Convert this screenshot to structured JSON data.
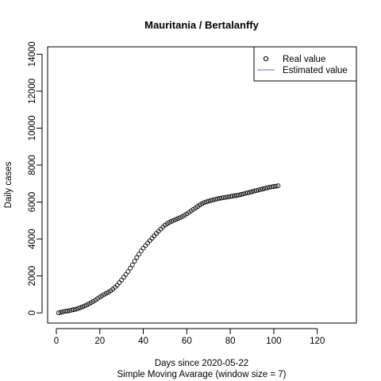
{
  "chart_data": {
    "type": "scatter",
    "title": "Mauritania / Bertalanffy",
    "xlabel": "Days since 2020-05-22",
    "subtitle": "Simple Moving Avarage (window size = 7)",
    "ylabel": "Daily cases",
    "xlim": [
      -4,
      138
    ],
    "ylim": [
      -550,
      14400
    ],
    "xticks": [
      0,
      20,
      40,
      60,
      80,
      100,
      120
    ],
    "yticks": [
      0,
      2000,
      4000,
      6000,
      8000,
      10000,
      12000,
      14000
    ],
    "legend": {
      "position": "top-right",
      "entries": [
        {
          "label": "Real value",
          "symbol": "open-circle"
        },
        {
          "label": "Estimated value",
          "symbol": "line",
          "color": "#9b59b6"
        }
      ]
    },
    "series": [
      {
        "name": "Real value",
        "marker": "open-circle",
        "points": [
          [
            1,
            5
          ],
          [
            2,
            30
          ],
          [
            3,
            60
          ],
          [
            4,
            85
          ],
          [
            5,
            100
          ],
          [
            6,
            120
          ],
          [
            7,
            150
          ],
          [
            8,
            175
          ],
          [
            9,
            200
          ],
          [
            10,
            240
          ],
          [
            11,
            280
          ],
          [
            12,
            330
          ],
          [
            13,
            380
          ],
          [
            14,
            430
          ],
          [
            15,
            490
          ],
          [
            16,
            560
          ],
          [
            17,
            620
          ],
          [
            18,
            700
          ],
          [
            19,
            780
          ],
          [
            20,
            860
          ],
          [
            21,
            930
          ],
          [
            22,
            1000
          ],
          [
            23,
            1060
          ],
          [
            24,
            1120
          ],
          [
            25,
            1200
          ],
          [
            26,
            1290
          ],
          [
            27,
            1390
          ],
          [
            28,
            1500
          ],
          [
            29,
            1640
          ],
          [
            30,
            1780
          ],
          [
            31,
            1930
          ],
          [
            32,
            2080
          ],
          [
            33,
            2240
          ],
          [
            34,
            2420
          ],
          [
            35,
            2600
          ],
          [
            36,
            2800
          ],
          [
            37,
            3000
          ],
          [
            38,
            3180
          ],
          [
            39,
            3350
          ],
          [
            40,
            3500
          ],
          [
            41,
            3640
          ],
          [
            42,
            3780
          ],
          [
            43,
            3910
          ],
          [
            44,
            4040
          ],
          [
            45,
            4170
          ],
          [
            46,
            4300
          ],
          [
            47,
            4420
          ],
          [
            48,
            4540
          ],
          [
            49,
            4650
          ],
          [
            50,
            4750
          ],
          [
            51,
            4830
          ],
          [
            52,
            4900
          ],
          [
            53,
            4960
          ],
          [
            54,
            5010
          ],
          [
            55,
            5060
          ],
          [
            56,
            5110
          ],
          [
            57,
            5160
          ],
          [
            58,
            5220
          ],
          [
            59,
            5290
          ],
          [
            60,
            5360
          ],
          [
            61,
            5440
          ],
          [
            62,
            5520
          ],
          [
            63,
            5600
          ],
          [
            64,
            5680
          ],
          [
            65,
            5760
          ],
          [
            66,
            5840
          ],
          [
            67,
            5910
          ],
          [
            68,
            5970
          ],
          [
            69,
            6010
          ],
          [
            70,
            6050
          ],
          [
            71,
            6080
          ],
          [
            72,
            6110
          ],
          [
            73,
            6140
          ],
          [
            74,
            6170
          ],
          [
            75,
            6200
          ],
          [
            76,
            6220
          ],
          [
            77,
            6240
          ],
          [
            78,
            6260
          ],
          [
            79,
            6280
          ],
          [
            80,
            6300
          ],
          [
            81,
            6320
          ],
          [
            82,
            6340
          ],
          [
            83,
            6360
          ],
          [
            84,
            6380
          ],
          [
            85,
            6410
          ],
          [
            86,
            6440
          ],
          [
            87,
            6470
          ],
          [
            88,
            6500
          ],
          [
            89,
            6530
          ],
          [
            90,
            6560
          ],
          [
            91,
            6590
          ],
          [
            92,
            6620
          ],
          [
            93,
            6650
          ],
          [
            94,
            6680
          ],
          [
            95,
            6710
          ],
          [
            96,
            6740
          ],
          [
            97,
            6770
          ],
          [
            98,
            6800
          ],
          [
            99,
            6820
          ],
          [
            100,
            6840
          ],
          [
            101,
            6860
          ],
          [
            102,
            6880
          ]
        ]
      }
    ]
  }
}
